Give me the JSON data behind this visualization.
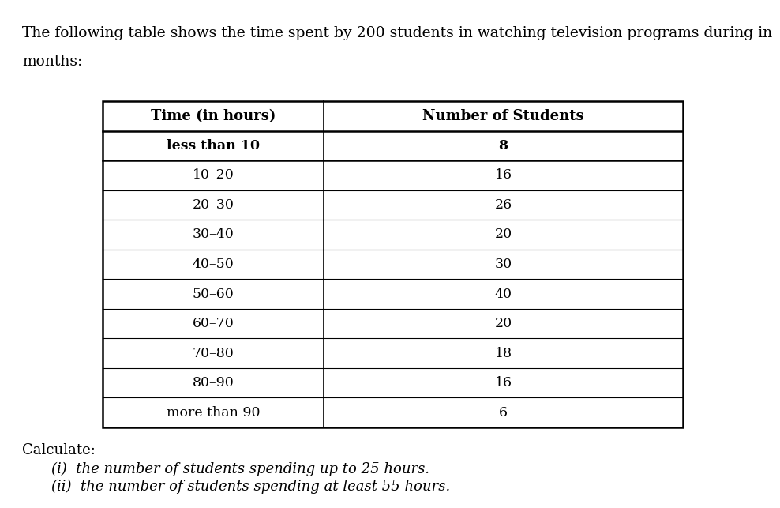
{
  "intro_line1": "The following table shows the time spent by 200 students in watching television programs during in",
  "intro_line2": "months:",
  "col1_header": "Time (in hours)",
  "col2_header": "Number of Students",
  "rows": [
    [
      "less than 10",
      "8"
    ],
    [
      "10–20",
      "16"
    ],
    [
      "20–30",
      "26"
    ],
    [
      "30–40",
      "20"
    ],
    [
      "40–50",
      "30"
    ],
    [
      "50–60",
      "40"
    ],
    [
      "60–70",
      "20"
    ],
    [
      "70–80",
      "18"
    ],
    [
      "80–90",
      "16"
    ],
    [
      "more than 90",
      "6"
    ]
  ],
  "calculate_label": "Calculate:",
  "sub_q1": "(i)  the number of students spending up to 25 hours.",
  "sub_q2": "(ii)  the number of students spending at least 55 hours.",
  "bg_color": "#ffffff",
  "text_color": "#000000",
  "font_size_intro": 13.5,
  "font_size_header": 13,
  "font_size_data": 12.5,
  "font_size_calc": 13,
  "font_size_sub": 13
}
